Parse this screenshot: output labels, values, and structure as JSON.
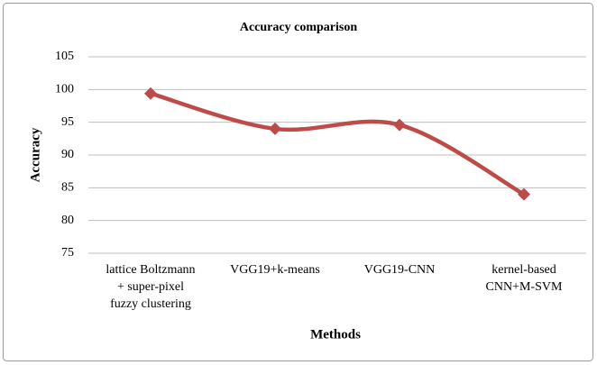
{
  "chart_data": {
    "type": "line",
    "title": "Accuracy comparison",
    "x_label": "Methods",
    "y_label": "Accuracy",
    "categories": [
      "lattice Boltzmann\n+ super-pixel\nfuzzy clustering",
      "VGG19+k-means",
      "VGG19-CNN",
      "kernel-based\nCNN+M-SVM"
    ],
    "series": [
      {
        "name": "Accuracy",
        "color": "#be4b48",
        "values": [
          99.4,
          94.0,
          94.6,
          84.0
        ]
      }
    ],
    "ylim": [
      75,
      105
    ],
    "yticks": [
      75,
      80,
      85,
      90,
      95,
      100,
      105
    ],
    "grid": true,
    "smooth": true
  }
}
